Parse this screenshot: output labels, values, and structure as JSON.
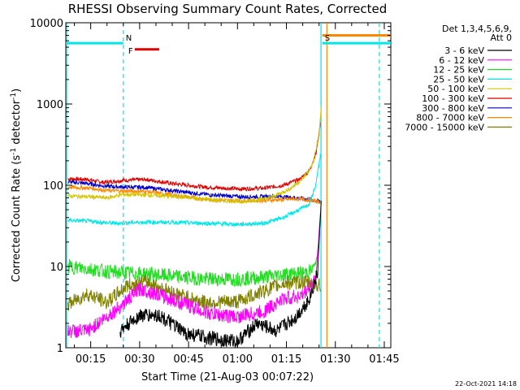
{
  "chart_data": {
    "type": "line",
    "title": "RHESSI Observing Summary Count Rates, Corrected",
    "xlabel": "Start Time (21-Aug-03 00:07:22)",
    "ylabel": "Corrected Count Rate (s",
    "ylabel_sup1": "-1",
    "ylabel_mid": " detector",
    "ylabel_sup2": "-1",
    "ylabel_end": ")",
    "yscale": "log",
    "ylim": [
      1,
      10000
    ],
    "xlim_min": [
      7.37,
      107
    ],
    "ytick_labels": [
      "1",
      "10",
      "100",
      "1000",
      "10000"
    ],
    "xtick_labels": [
      "00:15",
      "00:30",
      "00:45",
      "01:00",
      "01:15",
      "01:30",
      "01:45"
    ],
    "xtick_values": [
      15,
      30,
      45,
      60,
      75,
      90,
      105
    ],
    "legend_header": [
      "Det 1,3,4,5,6,9,",
      "Att 0"
    ],
    "legend": [
      {
        "name": "3 - 6 keV",
        "color": "#000000"
      },
      {
        "name": "6 - 12 keV",
        "color": "#ff00ff"
      },
      {
        "name": "12 - 25 keV",
        "color": "#22dd22"
      },
      {
        "name": "25 - 50 keV",
        "color": "#00e5e5"
      },
      {
        "name": "50 - 100 keV",
        "color": "#d4c400"
      },
      {
        "name": "100 - 300 keV",
        "color": "#dd0000"
      },
      {
        "name": "300 - 800 keV",
        "color": "#0000cc"
      },
      {
        "name": "800 - 7000 keV",
        "color": "#ff8800"
      },
      {
        "name": "7000 - 15000 keV",
        "color": "#808000"
      }
    ],
    "series": [
      {
        "name": "100 - 300 keV",
        "color": "#dd0000",
        "points": [
          [
            8,
            120
          ],
          [
            14,
            118
          ],
          [
            19,
            108
          ],
          [
            25,
            115
          ],
          [
            32,
            118
          ],
          [
            40,
            105
          ],
          [
            50,
            95
          ],
          [
            60,
            90
          ],
          [
            68,
            92
          ],
          [
            74,
            100
          ],
          [
            79,
            118
          ],
          [
            82,
            150
          ],
          [
            84,
            240
          ],
          [
            85.5,
            600
          ]
        ]
      },
      {
        "name": "300 - 800 keV",
        "color": "#0000cc",
        "points": [
          [
            8,
            110
          ],
          [
            14,
            105
          ],
          [
            20,
            97
          ],
          [
            25,
            95
          ],
          [
            32,
            94
          ],
          [
            42,
            84
          ],
          [
            52,
            76
          ],
          [
            62,
            72
          ],
          [
            72,
            73
          ],
          [
            78,
            70
          ],
          [
            82,
            67
          ],
          [
            85.5,
            63
          ]
        ]
      },
      {
        "name": "800 - 7000 keV",
        "color": "#ff8800",
        "points": [
          [
            8,
            95
          ],
          [
            15,
            92
          ],
          [
            20,
            86
          ],
          [
            25,
            85
          ],
          [
            32,
            84
          ],
          [
            42,
            74
          ],
          [
            52,
            66
          ],
          [
            62,
            64
          ],
          [
            72,
            66
          ],
          [
            78,
            68
          ],
          [
            82,
            66
          ],
          [
            85.5,
            62
          ]
        ]
      },
      {
        "name": "50 - 100 keV",
        "color": "#d4c400",
        "points": [
          [
            8,
            74
          ],
          [
            15,
            72
          ],
          [
            20,
            70
          ],
          [
            25,
            77
          ],
          [
            32,
            76
          ],
          [
            42,
            72
          ],
          [
            52,
            66
          ],
          [
            62,
            63
          ],
          [
            70,
            70
          ],
          [
            76,
            90
          ],
          [
            80,
            120
          ],
          [
            83,
            180
          ],
          [
            85,
            400
          ],
          [
            85.8,
            1100
          ]
        ]
      },
      {
        "name": "25 - 50 keV",
        "color": "#00e5e5",
        "points": [
          [
            8,
            37
          ],
          [
            15,
            36
          ],
          [
            22,
            34
          ],
          [
            30,
            35
          ],
          [
            40,
            35
          ],
          [
            50,
            34
          ],
          [
            60,
            33
          ],
          [
            68,
            34
          ],
          [
            74,
            40
          ],
          [
            78,
            48
          ],
          [
            82,
            58
          ],
          [
            84,
            100
          ],
          [
            85.5,
            250
          ]
        ]
      },
      {
        "name": "12 - 25 keV",
        "color": "#22dd22",
        "points": [
          [
            8,
            10
          ],
          [
            15,
            9.3
          ],
          [
            22,
            8.5
          ],
          [
            30,
            8.2
          ],
          [
            40,
            7.6
          ],
          [
            50,
            7
          ],
          [
            60,
            7
          ],
          [
            68,
            7.4
          ],
          [
            74,
            8
          ],
          [
            80,
            8.3
          ],
          [
            83,
            9
          ],
          [
            84.5,
            13
          ],
          [
            85.5,
            45
          ]
        ]
      },
      {
        "name": "7000 - 15000 keV",
        "color": "#808000",
        "points": [
          [
            8,
            3.4
          ],
          [
            14,
            4.6
          ],
          [
            20,
            3.6
          ],
          [
            26,
            5.8
          ],
          [
            32,
            6.5
          ],
          [
            40,
            4.8
          ],
          [
            50,
            3.6
          ],
          [
            60,
            3.7
          ],
          [
            68,
            5
          ],
          [
            74,
            6.2
          ],
          [
            80,
            6.4
          ],
          [
            85.5,
            5.8
          ]
        ]
      },
      {
        "name": "6 - 12 keV",
        "color": "#ff00ff",
        "points": [
          [
            8,
            1.6
          ],
          [
            14,
            1.6
          ],
          [
            24,
            3.2
          ],
          [
            30,
            5.3
          ],
          [
            36,
            4.5
          ],
          [
            44,
            3.4
          ],
          [
            52,
            2.6
          ],
          [
            60,
            2.4
          ],
          [
            68,
            2.8
          ],
          [
            74,
            4
          ],
          [
            80,
            4.4
          ],
          [
            84,
            7
          ],
          [
            85.5,
            50
          ]
        ]
      },
      {
        "name": "3 - 6 keV",
        "color": "#000000",
        "points": [
          [
            24,
            1.6
          ],
          [
            30,
            2.5
          ],
          [
            36,
            2.5
          ],
          [
            44,
            1.5
          ],
          [
            52,
            1.3
          ],
          [
            60,
            1.2
          ],
          [
            66,
            2
          ],
          [
            72,
            1.6
          ],
          [
            78,
            2.4
          ],
          [
            82,
            4
          ],
          [
            84.5,
            8
          ],
          [
            85.8,
            80
          ]
        ]
      }
    ],
    "state_bars": [
      {
        "label": "",
        "color": "#00e5e5",
        "range": [
          7.37,
          25
        ],
        "y": 5600
      },
      {
        "label": "N",
        "color": "#00e5e5",
        "range": [
          25,
          25
        ]
      },
      {
        "label": "F",
        "color": "#dd0000",
        "range": [
          28.5,
          36
        ],
        "y": 4700
      },
      {
        "label": "S",
        "color": "#ff8800",
        "range": [
          86,
          107
        ],
        "y": 7000
      },
      {
        "label": "",
        "color": "#00e5e5",
        "range": [
          86,
          107
        ],
        "y": 5600
      }
    ],
    "vertical_markers": [
      {
        "x": 7.6,
        "color": "#00e5e5",
        "style": "solid"
      },
      {
        "x": 25,
        "color": "#00e5e5",
        "style": "dashed"
      },
      {
        "x": 85.6,
        "color": "#00e5e5",
        "style": "solid"
      },
      {
        "x": 87.4,
        "color": "#ff8800",
        "style": "solid"
      },
      {
        "x": 103.5,
        "color": "#00e5e5",
        "style": "dashed"
      }
    ],
    "footer_date": "22-Oct-2021 14:18"
  }
}
